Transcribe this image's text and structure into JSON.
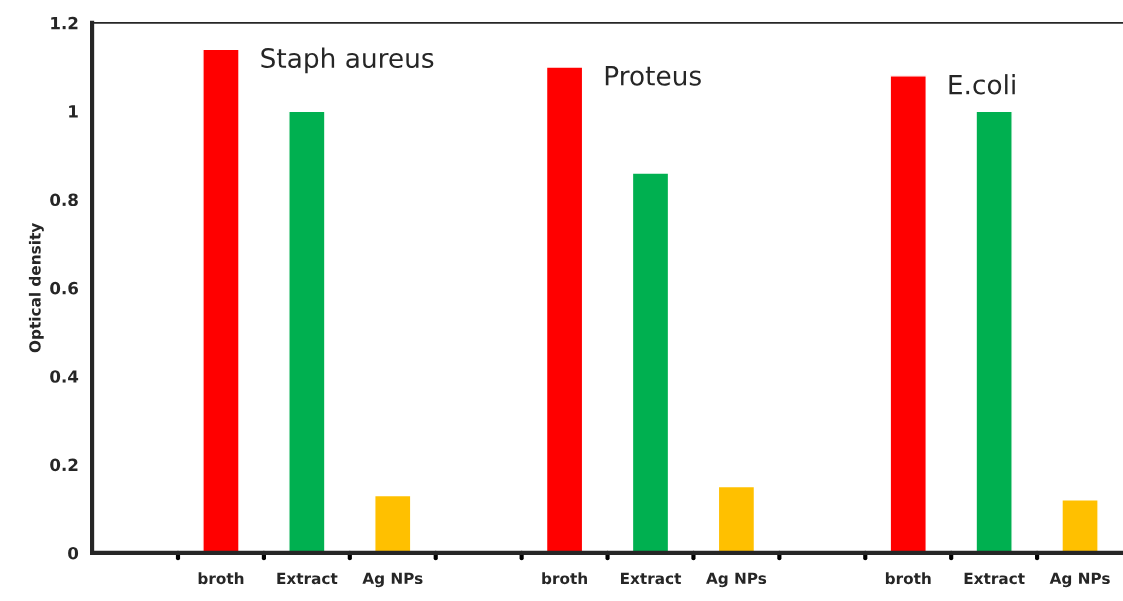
{
  "chart_data": {
    "type": "bar",
    "ylabel": "Optical density",
    "categories": [
      null,
      "broth",
      "Extract",
      "Ag NPs",
      null,
      "broth",
      "Extract",
      "Ag NPs",
      null,
      "broth",
      "Extract",
      "Ag NPs"
    ],
    "values": [
      null,
      1.14,
      1.0,
      0.13,
      null,
      1.1,
      0.86,
      0.15,
      null,
      1.08,
      1.0,
      0.12
    ],
    "colors": [
      null,
      "#ff0000",
      "#00b050",
      "#ffc000",
      null,
      "#ff0000",
      "#00b050",
      "#ffc000",
      null,
      "#ff0000",
      "#00b050",
      "#ffc000"
    ],
    "ylim": [
      0,
      1.2
    ],
    "yticks": [
      0,
      0.2,
      0.4,
      0.6,
      0.8,
      1,
      1.2
    ],
    "annotations": [
      "Staph aureus",
      "Proteus",
      "E.coli"
    ],
    "grid": false,
    "legend": false
  }
}
